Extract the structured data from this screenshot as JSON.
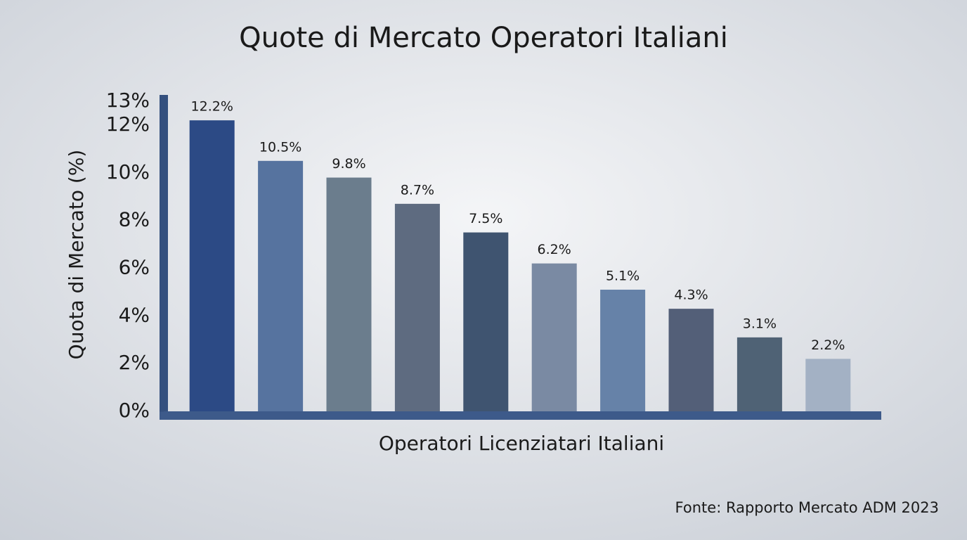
{
  "chart_data": {
    "type": "bar",
    "title": "Quote di Mercato Operatori Italiani",
    "y_label": "Quota di Mercato (%)",
    "x_label": "Operatori Licenziatari Italiani",
    "source": "Fonte: Rapporto Mercato ADM 2023",
    "categories": [
      null,
      null,
      null,
      null,
      null,
      null,
      null,
      null,
      null,
      null
    ],
    "values": [
      12.2,
      10.5,
      9.8,
      8.7,
      7.5,
      6.2,
      5.1,
      4.3,
      3.1,
      2.2
    ],
    "value_labels": [
      "12.2%",
      "10.5%",
      "9.8%",
      "8.7%",
      "7.5%",
      "6.2%",
      "5.1%",
      "4.3%",
      "3.1%",
      "2.2%"
    ],
    "colors": [
      "#2c4a85",
      "#56739f",
      "#6b7d8d",
      "#5e6b80",
      "#3f5470",
      "#7a8aa3",
      "#6682a8",
      "#535f78",
      "#4f6275",
      "#a3b1c4"
    ],
    "ylim": [
      0,
      13
    ],
    "yticks": [
      {
        "value": 0,
        "label": "0%"
      },
      {
        "value": 2,
        "label": "2%"
      },
      {
        "value": 4,
        "label": "4%"
      },
      {
        "value": 6,
        "label": "6%"
      },
      {
        "value": 8,
        "label": "8%"
      },
      {
        "value": 10,
        "label": "10%"
      },
      {
        "value": 12,
        "label": "12%"
      },
      {
        "value": 13,
        "label": "13%"
      }
    ],
    "grid": false
  }
}
